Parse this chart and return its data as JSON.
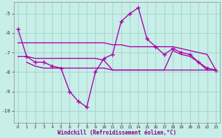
{
  "bg_color": "#c8eee8",
  "grid_color": "#a8d8d0",
  "line_color": "#aa00aa",
  "marker": "+",
  "markersize": 4,
  "linewidth": 1.0,
  "xlabel": "Windchill (Refroidissement éolien,°C)",
  "xlim": [
    -0.5,
    23.5
  ],
  "ylim": [
    -10.6,
    -4.4
  ],
  "yticks": [
    -10,
    -9,
    -8,
    -7,
    -6,
    -5
  ],
  "xticks": [
    0,
    1,
    2,
    3,
    4,
    5,
    6,
    7,
    8,
    9,
    10,
    11,
    12,
    13,
    14,
    15,
    16,
    17,
    18,
    19,
    20,
    21,
    22,
    23
  ],
  "series1_x": [
    0,
    1,
    2,
    3,
    4,
    5,
    6,
    7,
    8,
    9,
    10,
    11,
    12,
    13,
    14,
    15,
    16,
    17,
    18,
    19,
    20,
    21,
    22,
    23
  ],
  "series1_y": [
    -5.8,
    -7.2,
    -7.5,
    -7.5,
    -7.7,
    -7.8,
    -9.0,
    -9.5,
    -9.8,
    -8.0,
    -7.3,
    -7.1,
    -5.4,
    -5.0,
    -4.7,
    -6.3,
    -6.7,
    -7.1,
    -6.8,
    -7.0,
    -7.1,
    -7.5,
    -7.8,
    -7.9
  ],
  "series2_x": [
    0,
    1,
    2,
    3,
    4,
    5,
    6,
    7,
    8,
    9,
    10,
    11,
    12,
    13,
    14,
    15,
    16,
    17,
    18,
    19,
    20,
    21,
    22,
    23
  ],
  "series2_y": [
    -6.5,
    -6.5,
    -6.5,
    -6.5,
    -6.5,
    -6.5,
    -6.5,
    -6.5,
    -6.5,
    -6.5,
    -6.5,
    -6.6,
    -6.6,
    -6.7,
    -6.7,
    -6.7,
    -6.7,
    -6.7,
    -6.7,
    -6.8,
    -6.9,
    -7.0,
    -7.1,
    -7.9
  ],
  "series3_x": [
    0,
    1,
    2,
    3,
    4,
    5,
    6,
    7,
    8,
    9,
    10,
    11,
    12,
    13,
    14,
    15,
    16,
    17,
    18,
    19,
    20,
    21,
    22,
    23
  ],
  "series3_y": [
    -7.2,
    -7.2,
    -7.3,
    -7.3,
    -7.3,
    -7.3,
    -7.3,
    -7.3,
    -7.3,
    -7.3,
    -7.4,
    -7.9,
    -7.9,
    -7.9,
    -7.9,
    -7.9,
    -7.9,
    -7.9,
    -7.9,
    -7.9,
    -7.9,
    -7.9,
    -7.9,
    -7.9
  ],
  "series4_x": [
    1,
    2,
    3,
    4,
    5,
    6,
    7,
    8,
    9,
    10,
    11,
    12,
    13,
    14,
    15,
    16,
    17,
    18,
    19,
    20,
    21,
    22,
    23
  ],
  "series4_y": [
    -7.5,
    -7.7,
    -7.8,
    -7.8,
    -7.8,
    -7.8,
    -7.8,
    -7.8,
    -7.8,
    -7.8,
    -7.9,
    -7.9,
    -7.9,
    -7.9,
    -7.9,
    -7.9,
    -7.9,
    -6.9,
    -7.1,
    -7.2,
    -7.5,
    -7.9,
    -7.9
  ]
}
